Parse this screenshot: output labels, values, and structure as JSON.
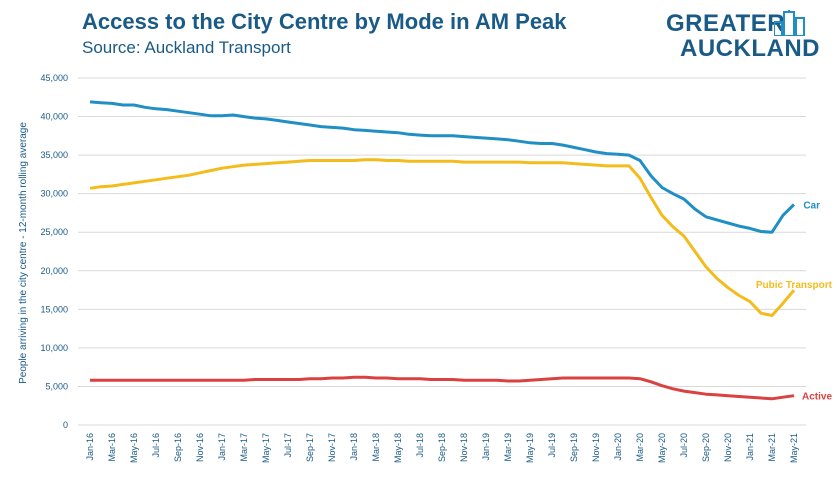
{
  "header": {
    "title": "Access to the City Centre by Mode in AM Peak",
    "subtitle": "Source: Auckland Transport"
  },
  "logo": {
    "line1": "GREATER",
    "line2": "AUCKLAND"
  },
  "colors": {
    "car": "#1f8fc4",
    "public_transport": "#f3bc1c",
    "active": "#d9423f",
    "text": "#1a5a87",
    "grid": "#d9d9d9"
  },
  "chart_data": {
    "type": "line",
    "ylabel": "People arriving in the city centre - 12-month rolling average",
    "xlabel": "",
    "ylim": [
      0,
      45000
    ],
    "yticks": [
      "0",
      "5,000",
      "10,000",
      "15,000",
      "20,000",
      "25,000",
      "30,000",
      "35,000",
      "40,000",
      "45,000"
    ],
    "grid": true,
    "legend": "inline-labels-right",
    "x_tick_labels": [
      "Jan-16",
      "Mar-16",
      "May-16",
      "Jul-16",
      "Sep-16",
      "Nov-16",
      "Jan-17",
      "Mar-17",
      "May-17",
      "Jul-17",
      "Sep-17",
      "Nov-17",
      "Jan-18",
      "Mar-18",
      "May-18",
      "Jul-18",
      "Sep-18",
      "Nov-18",
      "Jan-19",
      "Mar-19",
      "May-19",
      "Jul-19",
      "Sep-19",
      "Nov-19",
      "Jan-20",
      "Mar-20",
      "May-20",
      "Jul-20",
      "Sep-20",
      "Nov-20",
      "Jan-21",
      "Mar-21",
      "May-21"
    ],
    "series": [
      {
        "name": "Car",
        "color": "#1f8fc4",
        "values": [
          41900,
          41800,
          41700,
          41500,
          41500,
          41200,
          41000,
          40900,
          40700,
          40500,
          40300,
          40100,
          40100,
          40200,
          40000,
          39800,
          39700,
          39500,
          39300,
          39100,
          38900,
          38700,
          38600,
          38500,
          38300,
          38200,
          38100,
          38000,
          37900,
          37700,
          37600,
          37500,
          37500,
          37500,
          37400,
          37300,
          37200,
          37100,
          37000,
          36800,
          36600,
          36500,
          36500,
          36300,
          36000,
          35700,
          35400,
          35200,
          35100,
          35000,
          34300,
          32300,
          30800,
          30000,
          29300,
          28000,
          27000,
          26600,
          26200,
          25800,
          25500,
          25100,
          25000,
          27200,
          28600
        ]
      },
      {
        "name": "Pubic Transport",
        "color": "#f3bc1c",
        "values": [
          30700,
          30900,
          31000,
          31200,
          31400,
          31600,
          31800,
          32000,
          32200,
          32400,
          32700,
          33000,
          33300,
          33500,
          33700,
          33800,
          33900,
          34000,
          34100,
          34200,
          34300,
          34300,
          34300,
          34300,
          34300,
          34400,
          34400,
          34300,
          34300,
          34200,
          34200,
          34200,
          34200,
          34200,
          34100,
          34100,
          34100,
          34100,
          34100,
          34100,
          34000,
          34000,
          34000,
          34000,
          33900,
          33800,
          33700,
          33600,
          33600,
          33600,
          32000,
          29500,
          27200,
          25700,
          24500,
          22500,
          20500,
          19000,
          17800,
          16800,
          16000,
          14500,
          14200,
          15800,
          17500
        ]
      },
      {
        "name": "Active",
        "color": "#d9423f",
        "values": [
          5800,
          5800,
          5800,
          5800,
          5800,
          5800,
          5800,
          5800,
          5800,
          5800,
          5800,
          5800,
          5800,
          5800,
          5800,
          5900,
          5900,
          5900,
          5900,
          5900,
          6000,
          6000,
          6100,
          6100,
          6200,
          6200,
          6100,
          6100,
          6000,
          6000,
          6000,
          5900,
          5900,
          5900,
          5800,
          5800,
          5800,
          5800,
          5700,
          5700,
          5800,
          5900,
          6000,
          6100,
          6100,
          6100,
          6100,
          6100,
          6100,
          6100,
          6000,
          5600,
          5100,
          4700,
          4400,
          4200,
          4000,
          3900,
          3800,
          3700,
          3600,
          3500,
          3400,
          3600,
          3800
        ]
      }
    ]
  }
}
